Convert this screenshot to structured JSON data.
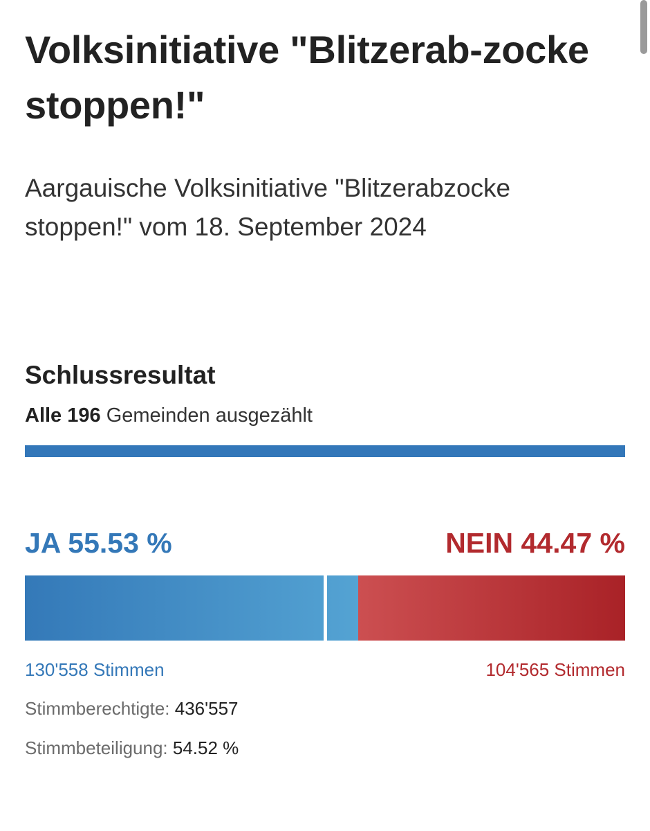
{
  "header": {
    "title": "Volksinitiative \"Blitzerab-­zocke stoppen!\"",
    "subtitle": "Aargauische Volksinitiative \"Blitzerabzo­cke stoppen!\" vom 18. September 2024"
  },
  "result": {
    "heading": "Schlussresultat",
    "counted_bold": "Alle 196",
    "counted_rest": "Gemeinden ausgezählt",
    "counted_fraction": 1.0,
    "ja": {
      "label": "JA 55.53 %",
      "percent": 55.53,
      "votes_text": "130'558 Stimmen"
    },
    "nein": {
      "label": "NEIN 44.47 %",
      "percent": 44.47,
      "votes_text": "104'565 Stimmen"
    },
    "majority_threshold": 50,
    "eligible_label": "Stimmberechtigte:",
    "eligible_value": "436'557",
    "turnout_label": "Stimmbeteiligung:",
    "turnout_value": "54.52 %"
  },
  "colors": {
    "ja": "#3478b8",
    "nein": "#b22a2e",
    "progress": "#3377b9"
  }
}
